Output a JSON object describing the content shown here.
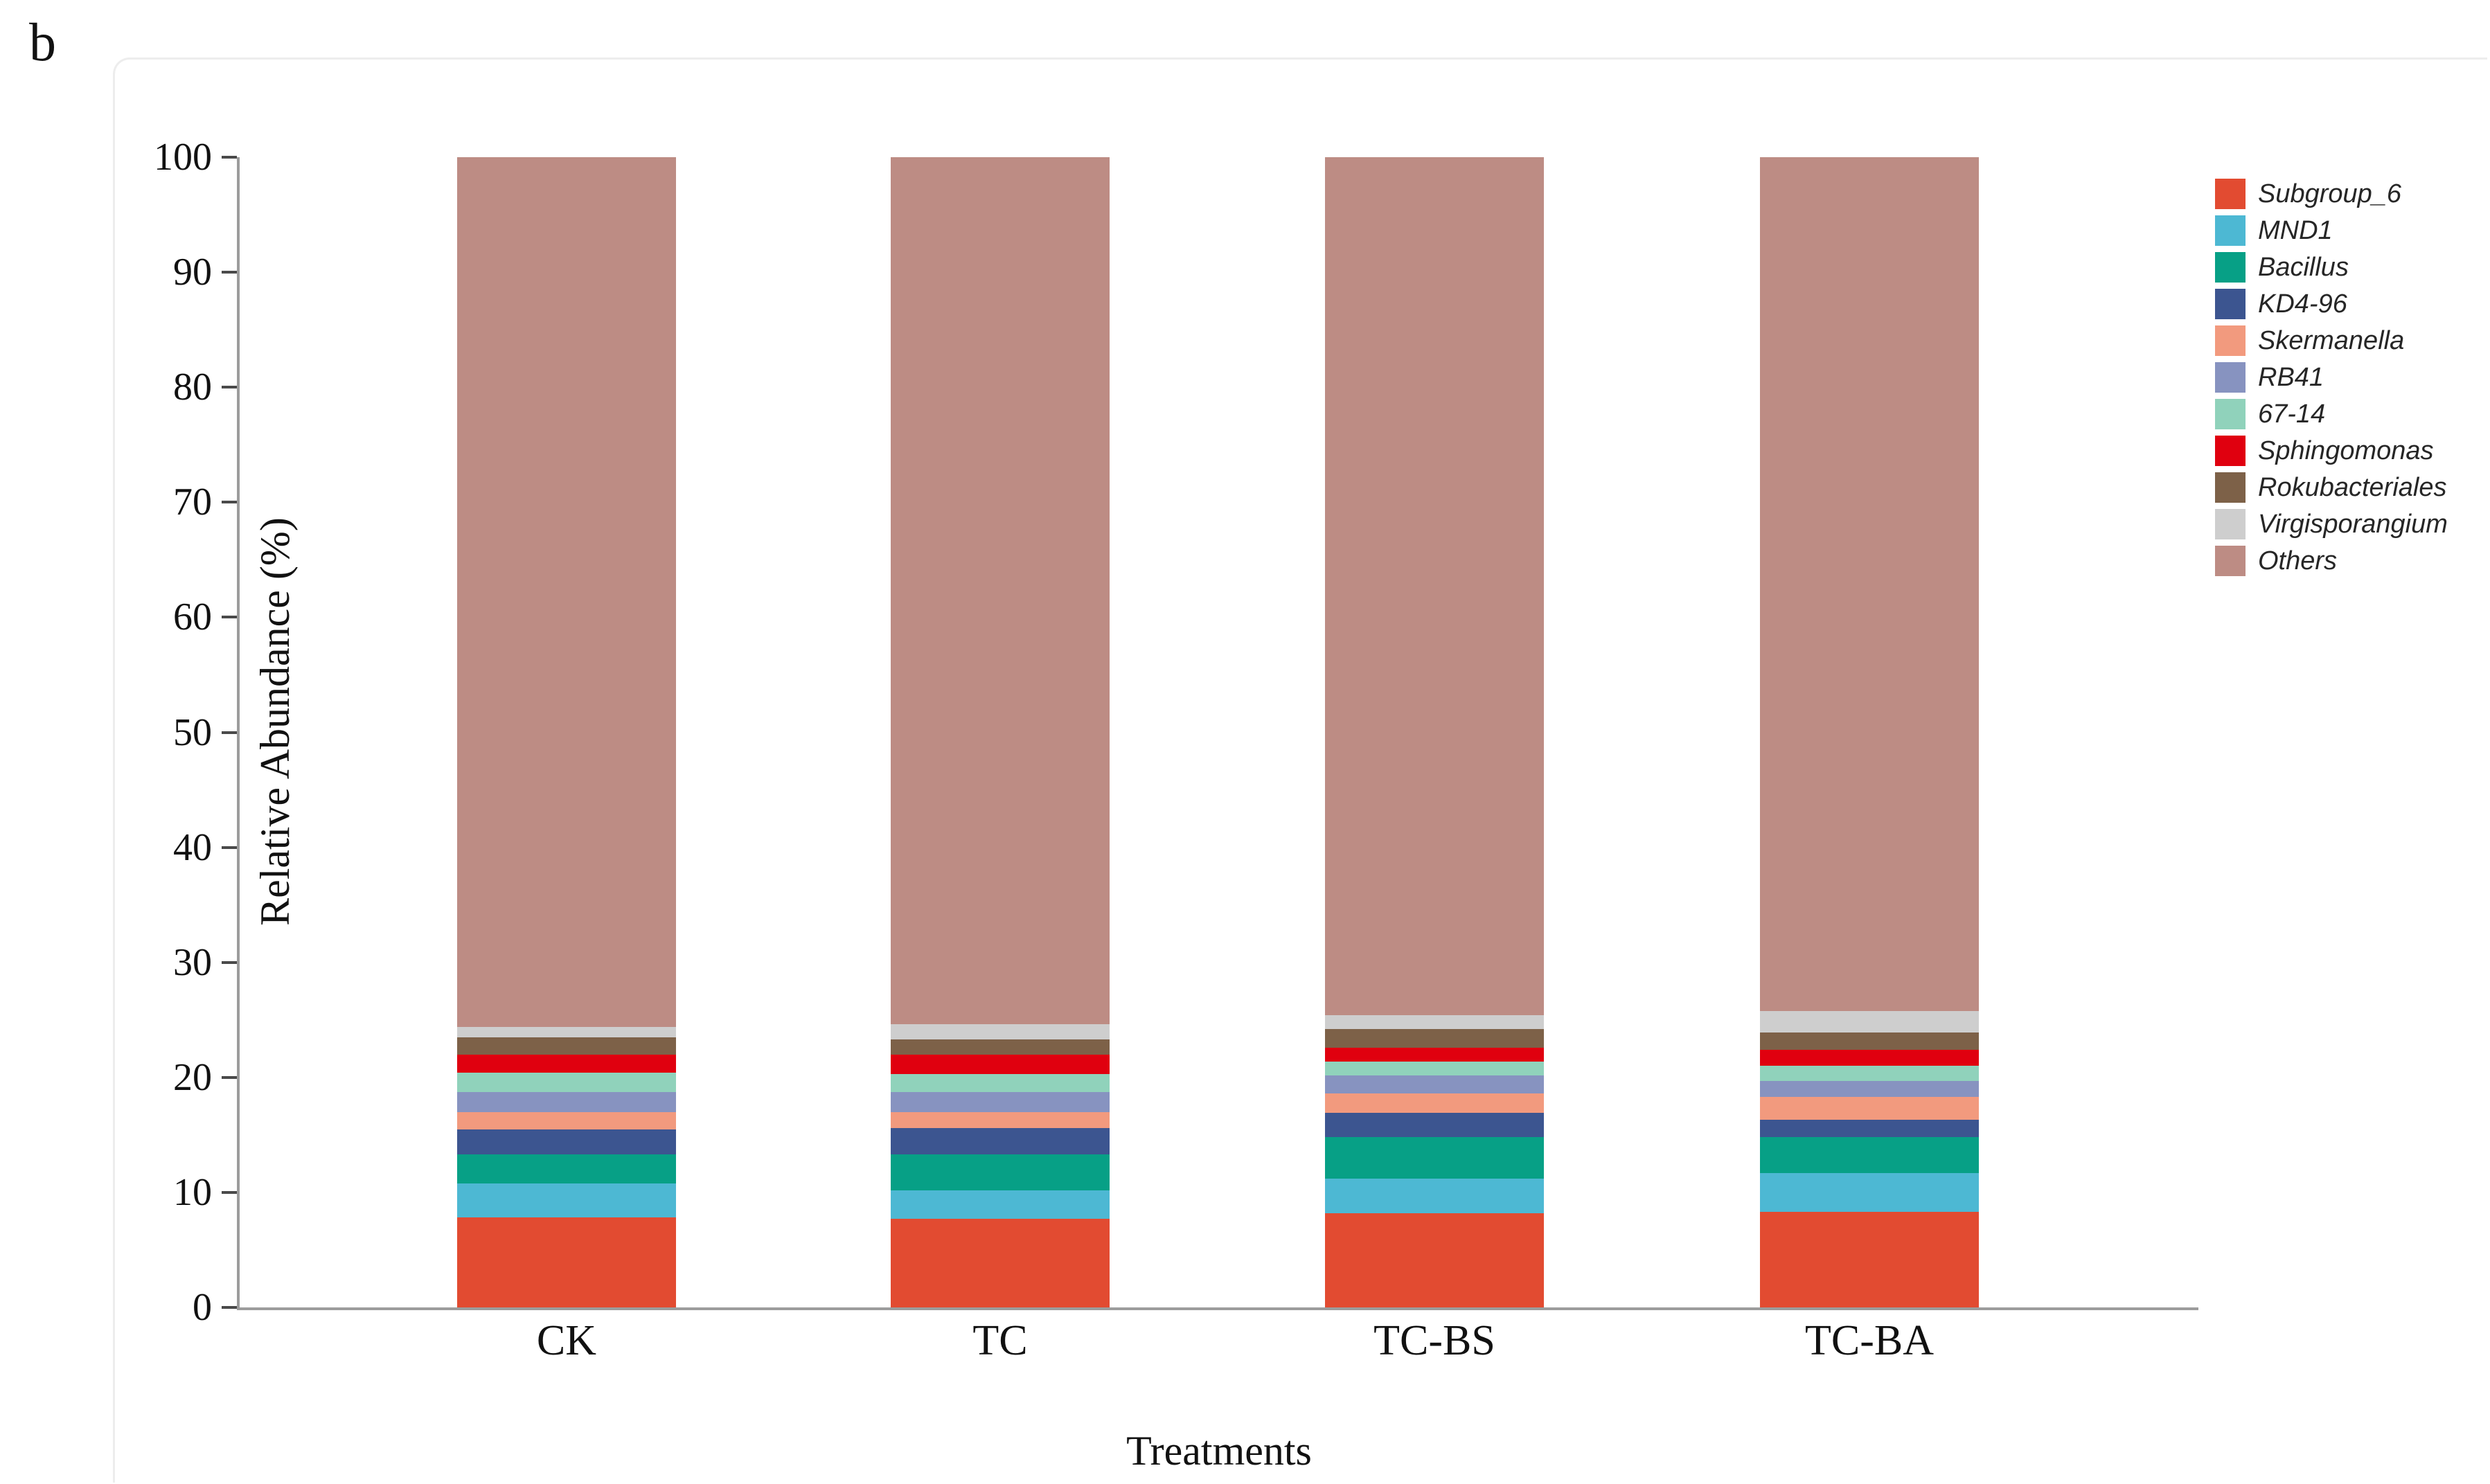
{
  "figure": {
    "panel_label": "b"
  },
  "chart_data": {
    "type": "bar",
    "stacked": true,
    "orientation": "vertical",
    "xlabel": "Treatments",
    "ylabel": "Relative Abundance (%)",
    "ylim": [
      0,
      100
    ],
    "yticks": [
      0,
      10,
      20,
      30,
      40,
      50,
      60,
      70,
      80,
      90,
      100
    ],
    "grid": false,
    "legend_position": "right",
    "categories": [
      "CK",
      "TC",
      "TC-BS",
      "TC-BA"
    ],
    "series": [
      {
        "name": "Subgroup_6",
        "color": "#e24b31",
        "values": [
          7.8,
          7.7,
          8.2,
          8.3
        ]
      },
      {
        "name": "MND1",
        "color": "#4db8d3",
        "values": [
          3.0,
          2.5,
          3.0,
          3.4
        ]
      },
      {
        "name": "Bacillus",
        "color": "#07a086",
        "values": [
          2.5,
          3.1,
          3.6,
          3.1
        ]
      },
      {
        "name": "KD4-96",
        "color": "#3c5590",
        "values": [
          2.2,
          2.3,
          2.1,
          1.5
        ]
      },
      {
        "name": "Skermanella",
        "color": "#f29a7e",
        "values": [
          1.5,
          1.4,
          1.7,
          2.0
        ]
      },
      {
        "name": "RB41",
        "color": "#8793c0",
        "values": [
          1.7,
          1.7,
          1.6,
          1.4
        ]
      },
      {
        "name": "67-14",
        "color": "#90d2bb",
        "values": [
          1.7,
          1.6,
          1.2,
          1.3
        ]
      },
      {
        "name": "Sphingomonas",
        "color": "#e0000f",
        "values": [
          1.6,
          1.7,
          1.2,
          1.4
        ]
      },
      {
        "name": "Rokubacteriales",
        "color": "#7d6148",
        "values": [
          1.5,
          1.3,
          1.6,
          1.5
        ]
      },
      {
        "name": "Virgisporangium",
        "color": "#cecece",
        "values": [
          0.9,
          1.3,
          1.2,
          1.9
        ]
      },
      {
        "name": "Others",
        "color": "#bd8c84",
        "values": [
          75.6,
          75.4,
          74.6,
          74.2
        ]
      }
    ]
  }
}
